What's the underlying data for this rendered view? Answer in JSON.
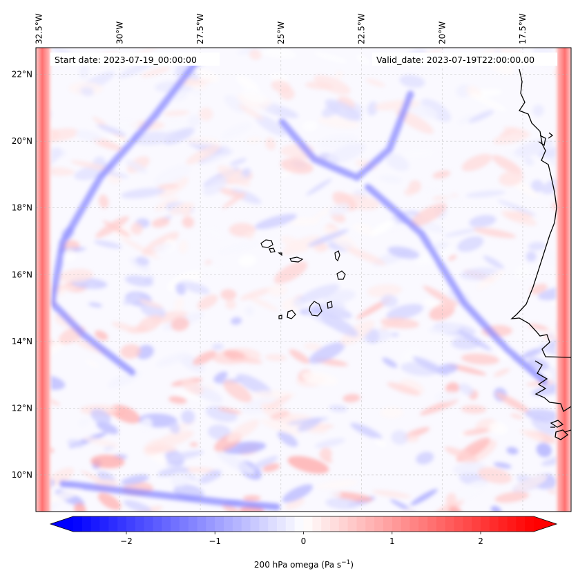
{
  "map": {
    "start_date": "Start date: 2023-07-19_00:00:00",
    "valid_date": "Valid_date: 2023-07-19T22:00:00.00",
    "lon_ticks": [
      {
        "label": "32.5°W",
        "value": -32.5
      },
      {
        "label": "30°W",
        "value": -30
      },
      {
        "label": "27.5°W",
        "value": -27.5
      },
      {
        "label": "25°W",
        "value": -25
      },
      {
        "label": "22.5°W",
        "value": -22.5
      },
      {
        "label": "20°W",
        "value": -20
      },
      {
        "label": "17.5°W",
        "value": -17.5
      }
    ],
    "lat_ticks": [
      {
        "label": "22°N",
        "value": 22
      },
      {
        "label": "20°N",
        "value": 20
      },
      {
        "label": "18°N",
        "value": 18
      },
      {
        "label": "16°N",
        "value": 16
      },
      {
        "label": "14°N",
        "value": 14
      },
      {
        "label": "12°N",
        "value": 12
      },
      {
        "label": "10°N",
        "value": 10
      }
    ],
    "extent": {
      "lon_min": -32.6,
      "lon_max": -16.0,
      "lat_min": 8.9,
      "lat_max": 22.8
    },
    "gridlines": true,
    "features": [
      "Cape Verde islands coastline",
      "West African coastline"
    ]
  },
  "colorbar": {
    "label": "200 hPa omega (Pa s",
    "label_sup": "−1",
    "label_end": ")",
    "ticks": [
      {
        "label": "−2",
        "value": -2
      },
      {
        "label": "−1",
        "value": -1
      },
      {
        "label": "0",
        "value": 0
      },
      {
        "label": "1",
        "value": 1
      },
      {
        "label": "2",
        "value": 2
      }
    ],
    "vmin": -2.6,
    "vmax": 2.6,
    "extend": "both",
    "cmap": "bwr",
    "low_color": "#0000ff",
    "mid_color": "#ffffff",
    "high_color": "#ff0000"
  }
}
